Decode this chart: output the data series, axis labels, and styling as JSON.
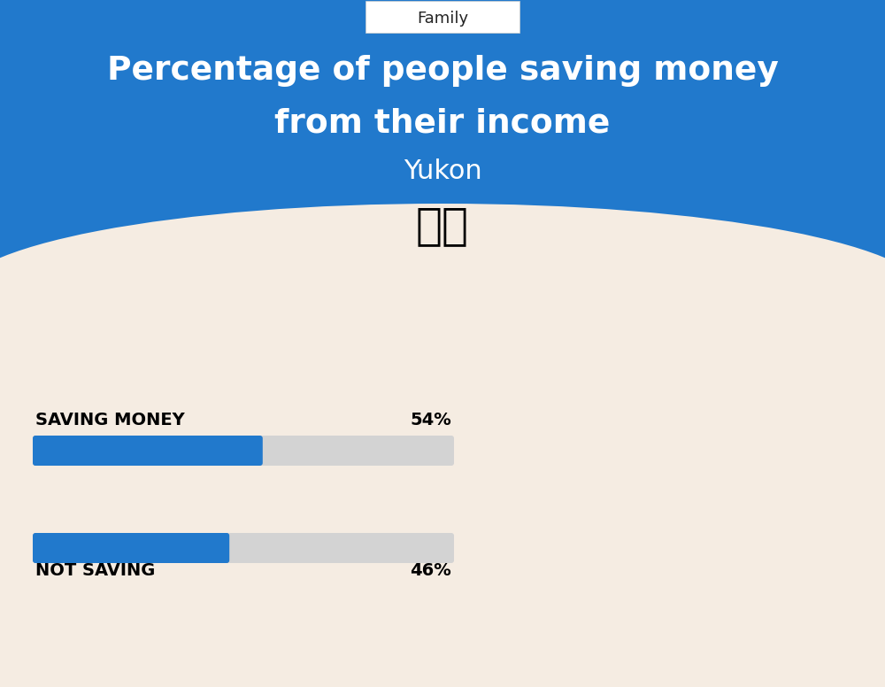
{
  "title_line1": "Percentage of people saving money",
  "title_line2": "from their income",
  "subtitle": "Yukon",
  "category_label": "Family",
  "bg_color": "#f5ece2",
  "blue_color": "#2179cc",
  "header_blue": "#2179cc",
  "bar_bg_color": "#d3d3d3",
  "saving_label": "SAVING MONEY",
  "saving_value": 54,
  "saving_text": "54%",
  "not_saving_label": "NOT SAVING",
  "not_saving_value": 46,
  "not_saving_text": "46%",
  "bar_max": 100,
  "fig_width": 10.0,
  "fig_height": 7.76
}
